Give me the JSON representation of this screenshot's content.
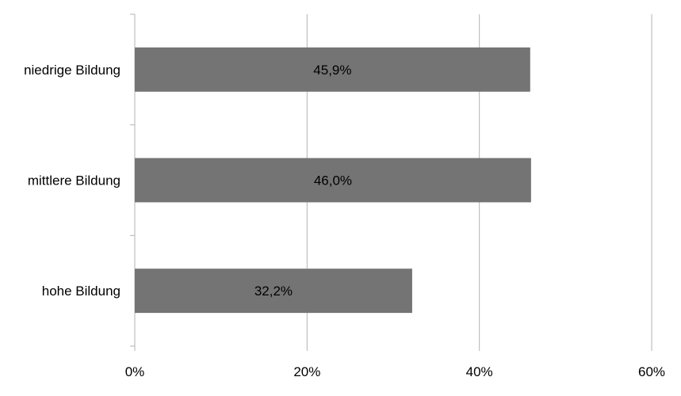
{
  "chart_data": {
    "type": "bar",
    "orientation": "horizontal",
    "categories": [
      "niedrige Bildung",
      "mittlere Bildung",
      "hohe Bildung"
    ],
    "values": [
      45.9,
      46.0,
      32.2
    ],
    "data_labels": [
      "45,9%",
      "46,0%",
      "32,2%"
    ],
    "x_ticks": [
      "0%",
      "20%",
      "40%",
      "60%"
    ],
    "xlim": [
      0,
      60
    ],
    "grid": true,
    "legend": "none",
    "title": "",
    "xlabel": "",
    "ylabel": "",
    "bar_color": "#747474",
    "grid_color": "#b3b3b3"
  }
}
